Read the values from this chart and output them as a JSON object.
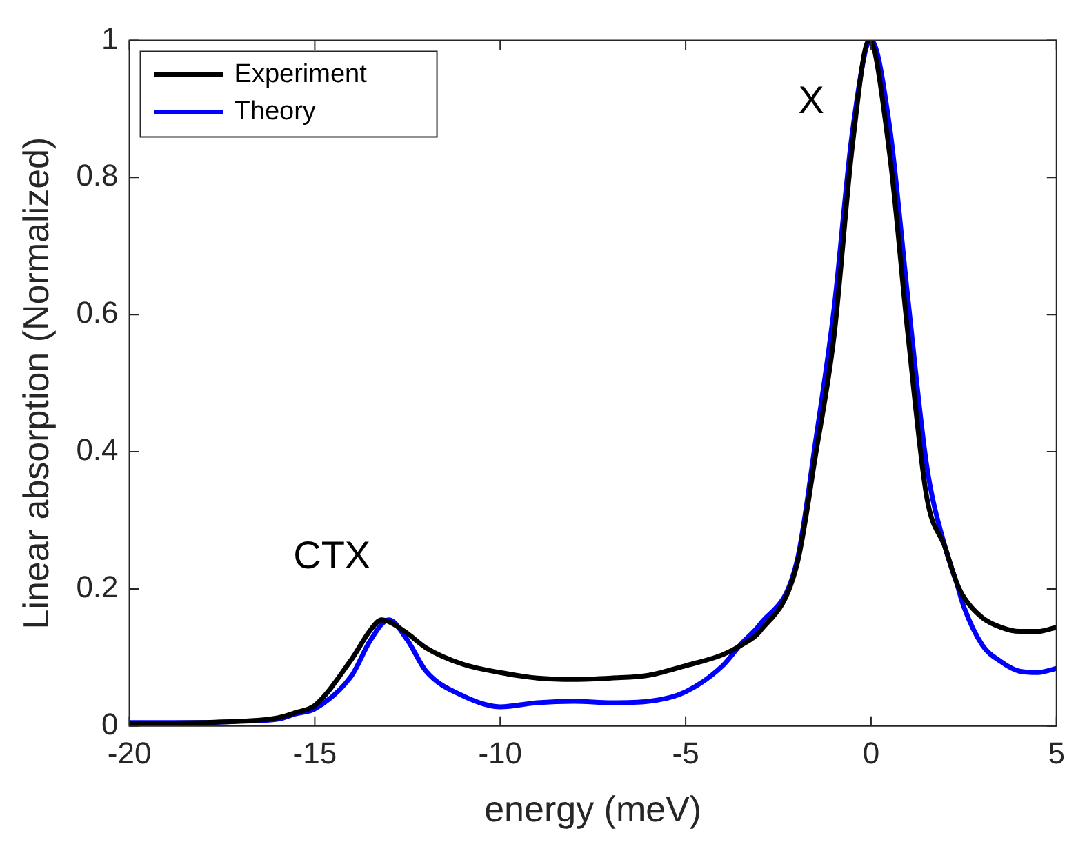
{
  "chart_data": {
    "type": "line",
    "xlabel": "energy (meV)",
    "ylabel": "Linear absorption (Normalized)",
    "xlim": [
      -20,
      5
    ],
    "xticks": [
      -20,
      -15,
      -10,
      -5,
      0,
      5
    ],
    "ylim": [
      0,
      1
    ],
    "yticks": [
      0,
      0.2,
      0.4,
      0.6,
      0.8,
      1
    ],
    "grid": false,
    "legend": "top left",
    "marker": "none",
    "line_style": "solid",
    "annotations": [
      {
        "text": "CTX",
        "x": -13.2,
        "y": 0.155
      },
      {
        "text": "X",
        "x": -0.05,
        "y": 1.0
      }
    ],
    "series": [
      {
        "name": "Experiment",
        "color": "#000000",
        "x": [
          -20,
          -18,
          -17,
          -16,
          -15.5,
          -15,
          -14,
          -13.5,
          -13.2,
          -13,
          -12.5,
          -12,
          -11,
          -10,
          -9,
          -8,
          -7,
          -6,
          -5,
          -4,
          -3.5,
          -3,
          -2,
          -1.5,
          -1,
          -0.5,
          -0.05,
          0.5,
          1,
          1.5,
          2,
          2.3,
          2.5,
          3,
          3.5,
          4,
          4.5,
          5
        ],
        "values": [
          0.003,
          0.005,
          0.007,
          0.012,
          0.02,
          0.03,
          0.098,
          0.14,
          0.155,
          0.152,
          0.135,
          0.114,
          0.09,
          0.078,
          0.07,
          0.068,
          0.07,
          0.074,
          0.088,
          0.104,
          0.118,
          0.138,
          0.235,
          0.394,
          0.568,
          0.848,
          1.0,
          0.834,
          0.568,
          0.334,
          0.26,
          0.21,
          0.188,
          0.158,
          0.144,
          0.138,
          0.138,
          0.144
        ]
      },
      {
        "name": "Theory",
        "color": "#0000ff",
        "x": [
          -20,
          -18,
          -17,
          -16,
          -15.5,
          -15,
          -14,
          -13.5,
          -13,
          -12.5,
          -12,
          -11,
          -10,
          -9,
          -8,
          -7,
          -6,
          -5,
          -4,
          -3.5,
          -3,
          -2,
          -1.5,
          -1,
          -0.5,
          0,
          0.5,
          1,
          1.5,
          2,
          2.3,
          2.5,
          3,
          3.5,
          4,
          4.5,
          5
        ],
        "values": [
          0.005,
          0.005,
          0.007,
          0.01,
          0.018,
          0.025,
          0.074,
          0.125,
          0.155,
          0.125,
          0.08,
          0.044,
          0.028,
          0.034,
          0.036,
          0.034,
          0.036,
          0.05,
          0.088,
          0.12,
          0.148,
          0.24,
          0.414,
          0.608,
          0.868,
          1.0,
          0.874,
          0.62,
          0.38,
          0.26,
          0.21,
          0.174,
          0.118,
          0.094,
          0.08,
          0.078,
          0.084
        ]
      }
    ]
  }
}
